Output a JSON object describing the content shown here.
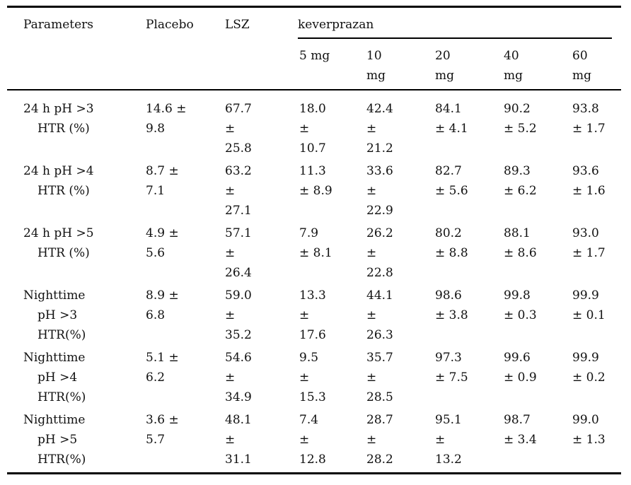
{
  "page": {
    "background": "#ffffff",
    "text_color": "#111111",
    "rule_color": "#000000"
  },
  "table": {
    "header": {
      "parameters": "Parameters",
      "placebo": "Placebo",
      "lsz": "LSZ",
      "group": "keverprazan",
      "doses": [
        "5 mg",
        "10\nmg",
        "20\nmg",
        "40\nmg",
        "60\nmg"
      ]
    },
    "rows": [
      {
        "parameter": "24 h pH >3\nHTR (%)",
        "cells": [
          "14.6 ±\n9.8",
          "67.7\n±\n25.8",
          "18.0\n±\n10.7",
          "42.4\n±\n21.2",
          "84.1\n± 4.1",
          "90.2\n± 5.2",
          "93.8\n± 1.7"
        ]
      },
      {
        "parameter": "24 h pH >4\nHTR (%)",
        "cells": [
          "8.7 ±\n7.1",
          "63.2\n±\n27.1",
          "11.3\n± 8.9",
          "33.6\n±\n22.9",
          "82.7\n± 5.6",
          "89.3\n± 6.2",
          "93.6\n± 1.6"
        ]
      },
      {
        "parameter": "24 h pH >5\nHTR (%)",
        "cells": [
          "4.9 ±\n5.6",
          "57.1\n±\n26.4",
          "7.9\n± 8.1",
          "26.2\n±\n22.8",
          "80.2\n± 8.8",
          "88.1\n± 8.6",
          "93.0\n± 1.7"
        ]
      },
      {
        "parameter": "Nighttime\npH >3\nHTR(%)",
        "cells": [
          "8.9 ±\n6.8",
          "59.0\n±\n35.2",
          "13.3\n±\n17.6",
          "44.1\n±\n26.3",
          "98.6\n± 3.8",
          "99.8\n± 0.3",
          "99.9\n± 0.1"
        ]
      },
      {
        "parameter": "Nighttime\npH >4\nHTR(%)",
        "cells": [
          "5.1 ±\n6.2",
          "54.6\n±\n34.9",
          "9.5\n±\n15.3",
          "35.7\n±\n28.5",
          "97.3\n± 7.5",
          "99.6\n± 0.9",
          "99.9\n± 0.2"
        ]
      },
      {
        "parameter": "Nighttime\npH >5\nHTR(%)",
        "cells": [
          "3.6 ±\n5.7",
          "48.1\n±\n31.1",
          "7.4\n±\n12.8",
          "28.7\n±\n28.2",
          "95.1\n±\n13.2",
          "98.7\n± 3.4",
          "99.0\n± 1.3"
        ]
      }
    ]
  }
}
